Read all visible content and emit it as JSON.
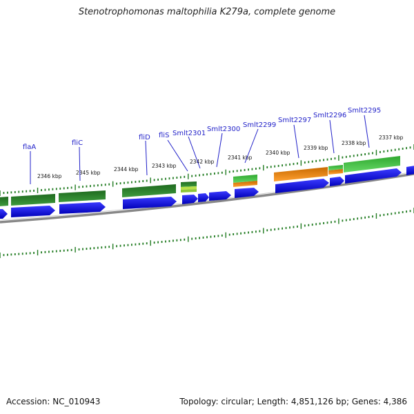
{
  "title": "Stenotrophomonas maltophilia K279a, complete genome",
  "footer": {
    "accession": "Accession: NC_010943",
    "summary": "Topology: circular; Length: 4,851,126 bp; Genes: 4,386"
  },
  "colors": {
    "cds_blue": "#1010dd",
    "feature_dark_green": "#2e8b2e",
    "feature_light_green": "#44c044",
    "feature_orange": "#f28a10",
    "feature_yellow_green": "#b9e04a",
    "label_blue": "#1e1ec8",
    "tick_green": "#1f7a1f",
    "backbone_gray": "#808080"
  },
  "scale_labels": [
    "2346 kbp",
    "2345 kbp",
    "2344 kbp",
    "2343 kbp",
    "2342 kbp",
    "2341 kbp",
    "2340 kbp",
    "2339 kbp",
    "2338 kbp",
    "2337 kbp"
  ],
  "gene_labels": [
    "flaA",
    "fliC",
    "fliD",
    "fliS",
    "Smlt2301",
    "Smlt2300",
    "Smlt2299",
    "Smlt2297",
    "Smlt2296",
    "Smlt2295"
  ]
}
